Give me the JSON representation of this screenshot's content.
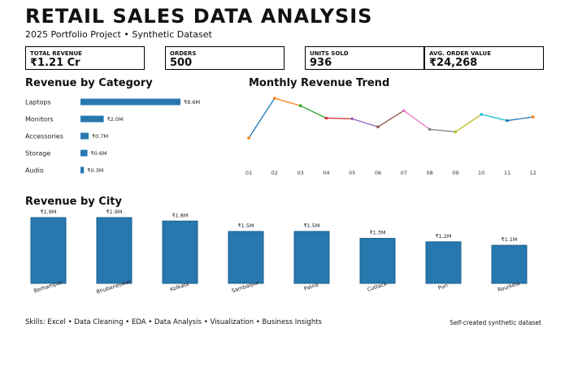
{
  "header": {
    "title": "RETAIL SALES DATA ANALYSIS",
    "subtitle": "2025 Portfolio Project  •  Synthetic Dataset"
  },
  "kpis": [
    {
      "label": "TOTAL REVENUE",
      "value": "₹1.21 Cr"
    },
    {
      "label": "ORDERS",
      "value": "500"
    },
    {
      "label": "UNITS SOLD",
      "value": "936"
    },
    {
      "label": "AVG. ORDER VALUE",
      "value": "₹24,268"
    }
  ],
  "sections": {
    "category_title": "Revenue by Category",
    "trend_title": "Monthly Revenue Trend",
    "city_title": "Revenue by City"
  },
  "footer": {
    "skills": "Skills: Excel  •  Data Cleaning  •  EDA  •  Data Analysis  •  Visualization  •  Business Insights",
    "note": "Self-created synthetic dataset"
  },
  "colors": {
    "bar": "#2878b0",
    "line_palette": [
      "#ff7f0e",
      "#2ca02c",
      "#d62728",
      "#9467bd",
      "#8c564b",
      "#e377c2",
      "#7f7f7f",
      "#bcbd22",
      "#17becf",
      "#1f77b4"
    ]
  },
  "chart_data": [
    {
      "type": "bar",
      "orientation": "horizontal",
      "title": "Revenue by Category",
      "categories": [
        "Laptops",
        "Monitors",
        "Accessories",
        "Storage",
        "Audio"
      ],
      "values": [
        8.6,
        2.0,
        0.7,
        0.6,
        0.3
      ],
      "value_labels": [
        "₹8.6M",
        "₹2.0M",
        "₹0.7M",
        "₹0.6M",
        "₹0.3M"
      ],
      "unit": "M"
    },
    {
      "type": "line",
      "title": "Monthly Revenue Trend",
      "x": [
        "01",
        "02",
        "03",
        "04",
        "05",
        "06",
        "07",
        "08",
        "09",
        "10",
        "11",
        "12"
      ],
      "values": [
        0.84,
        1.16,
        1.1,
        1.0,
        0.995,
        0.93,
        1.06,
        0.91,
        0.89,
        1.03,
        0.98,
        1.01
      ],
      "grid": false,
      "y_axis": "hidden"
    },
    {
      "type": "bar",
      "title": "Revenue by City",
      "categories": [
        "Berhampur",
        "Bhubaneswar",
        "Kolkata",
        "Sambalpur",
        "Patna",
        "Cuttack",
        "Puri",
        "Rourkela"
      ],
      "values": [
        1.9,
        1.9,
        1.8,
        1.5,
        1.5,
        1.3,
        1.2,
        1.1
      ],
      "value_labels": [
        "₹1.9M",
        "₹1.9M",
        "₹1.8M",
        "₹1.5M",
        "₹1.5M",
        "₹1.3M",
        "₹1.2M",
        "₹1.1M"
      ],
      "unit": "M"
    }
  ]
}
